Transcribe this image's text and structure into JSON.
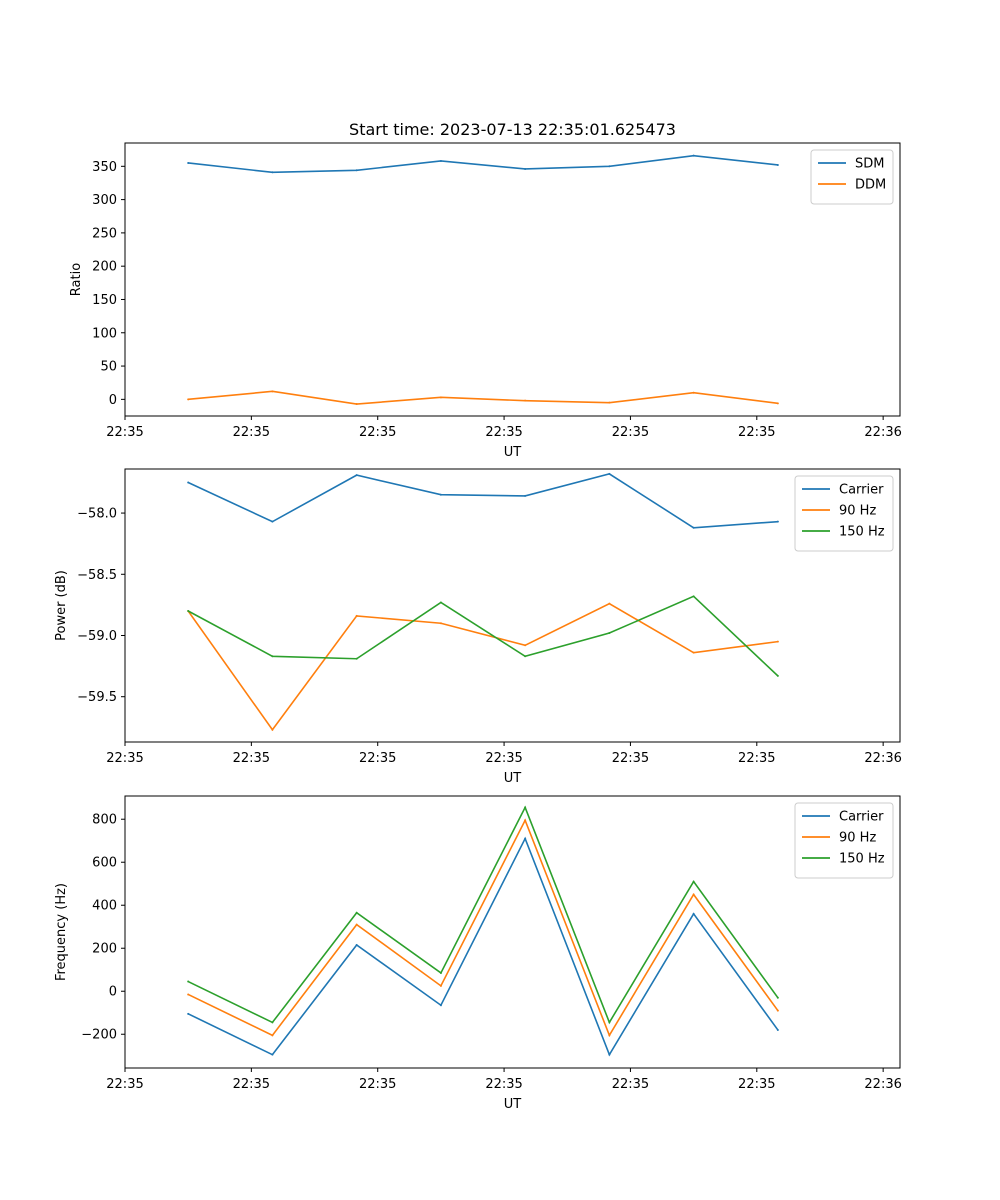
{
  "chart_data": [
    {
      "type": "line",
      "title": "Start time: 2023-07-13 22:35:01.625473",
      "xlabel": "UT",
      "ylabel": "Ratio",
      "x": [
        0,
        1,
        2,
        3,
        4,
        5,
        6,
        7
      ],
      "xlim": [
        -0.75,
        8.45
      ],
      "xticks": [
        -0.75,
        0.75,
        2.25,
        3.75,
        5.25,
        6.75,
        8.25
      ],
      "xtick_labels": [
        "22:35",
        "22:35",
        "22:35",
        "22:35",
        "22:35",
        "22:35",
        "22:36"
      ],
      "ylim": [
        -25,
        385
      ],
      "yticks": [
        0,
        50,
        100,
        150,
        200,
        250,
        300,
        350
      ],
      "ytick_labels": [
        "0",
        "50",
        "100",
        "150",
        "200",
        "250",
        "300",
        "350"
      ],
      "legend_position": "top-right",
      "series": [
        {
          "name": "SDM",
          "color": "#1f77b4",
          "values": [
            355,
            341,
            344,
            358,
            346,
            350,
            366,
            352
          ]
        },
        {
          "name": "DDM",
          "color": "#ff7f0e",
          "values": [
            0,
            12,
            -7,
            3,
            -2,
            -5,
            10,
            -6
          ]
        }
      ]
    },
    {
      "type": "line",
      "title": "",
      "xlabel": "UT",
      "ylabel": "Power (dB)",
      "x": [
        0,
        1,
        2,
        3,
        4,
        5,
        6,
        7
      ],
      "xlim": [
        -0.75,
        8.45
      ],
      "xticks": [
        -0.75,
        0.75,
        2.25,
        3.75,
        5.25,
        6.75,
        8.25
      ],
      "xtick_labels": [
        "22:35",
        "22:35",
        "22:35",
        "22:35",
        "22:35",
        "22:35",
        "22:36"
      ],
      "ylim": [
        -59.87,
        -57.64
      ],
      "yticks": [
        -59.5,
        -59.0,
        -58.5,
        -58.0
      ],
      "ytick_labels": [
        "−59.5",
        "−59.0",
        "−58.5",
        "−58.0"
      ],
      "legend_position": "top-right",
      "series": [
        {
          "name": "Carrier",
          "color": "#1f77b4",
          "values": [
            -57.75,
            -58.07,
            -57.69,
            -57.85,
            -57.86,
            -57.68,
            -58.12,
            -58.07
          ]
        },
        {
          "name": "90 Hz",
          "color": "#ff7f0e",
          "values": [
            -58.8,
            -59.77,
            -58.84,
            -58.9,
            -59.08,
            -58.74,
            -59.14,
            -59.05
          ]
        },
        {
          "name": "150 Hz",
          "color": "#2ca02c",
          "values": [
            -58.8,
            -59.17,
            -59.19,
            -58.73,
            -59.17,
            -58.98,
            -58.68,
            -59.33
          ]
        }
      ]
    },
    {
      "type": "line",
      "title": "",
      "xlabel": "UT",
      "ylabel": "Frequency (Hz)",
      "x": [
        0,
        1,
        2,
        3,
        4,
        5,
        6,
        7
      ],
      "xlim": [
        -0.75,
        8.45
      ],
      "xticks": [
        -0.75,
        0.75,
        2.25,
        3.75,
        5.25,
        6.75,
        8.25
      ],
      "xtick_labels": [
        "22:35",
        "22:35",
        "22:35",
        "22:35",
        "22:35",
        "22:35",
        "22:36"
      ],
      "ylim": [
        -357,
        908
      ],
      "yticks": [
        -200,
        0,
        200,
        400,
        600,
        800
      ],
      "ytick_labels": [
        "−200",
        "0",
        "200",
        "400",
        "600",
        "800"
      ],
      "legend_position": "top-right",
      "series": [
        {
          "name": "Carrier",
          "color": "#1f77b4",
          "values": [
            -105,
            -295,
            215,
            -65,
            710,
            -295,
            360,
            -180
          ]
        },
        {
          "name": "90 Hz",
          "color": "#ff7f0e",
          "values": [
            -15,
            -205,
            310,
            25,
            795,
            -205,
            450,
            -90
          ]
        },
        {
          "name": "150 Hz",
          "color": "#2ca02c",
          "values": [
            45,
            -145,
            365,
            85,
            855,
            -145,
            510,
            -30
          ]
        }
      ]
    }
  ]
}
